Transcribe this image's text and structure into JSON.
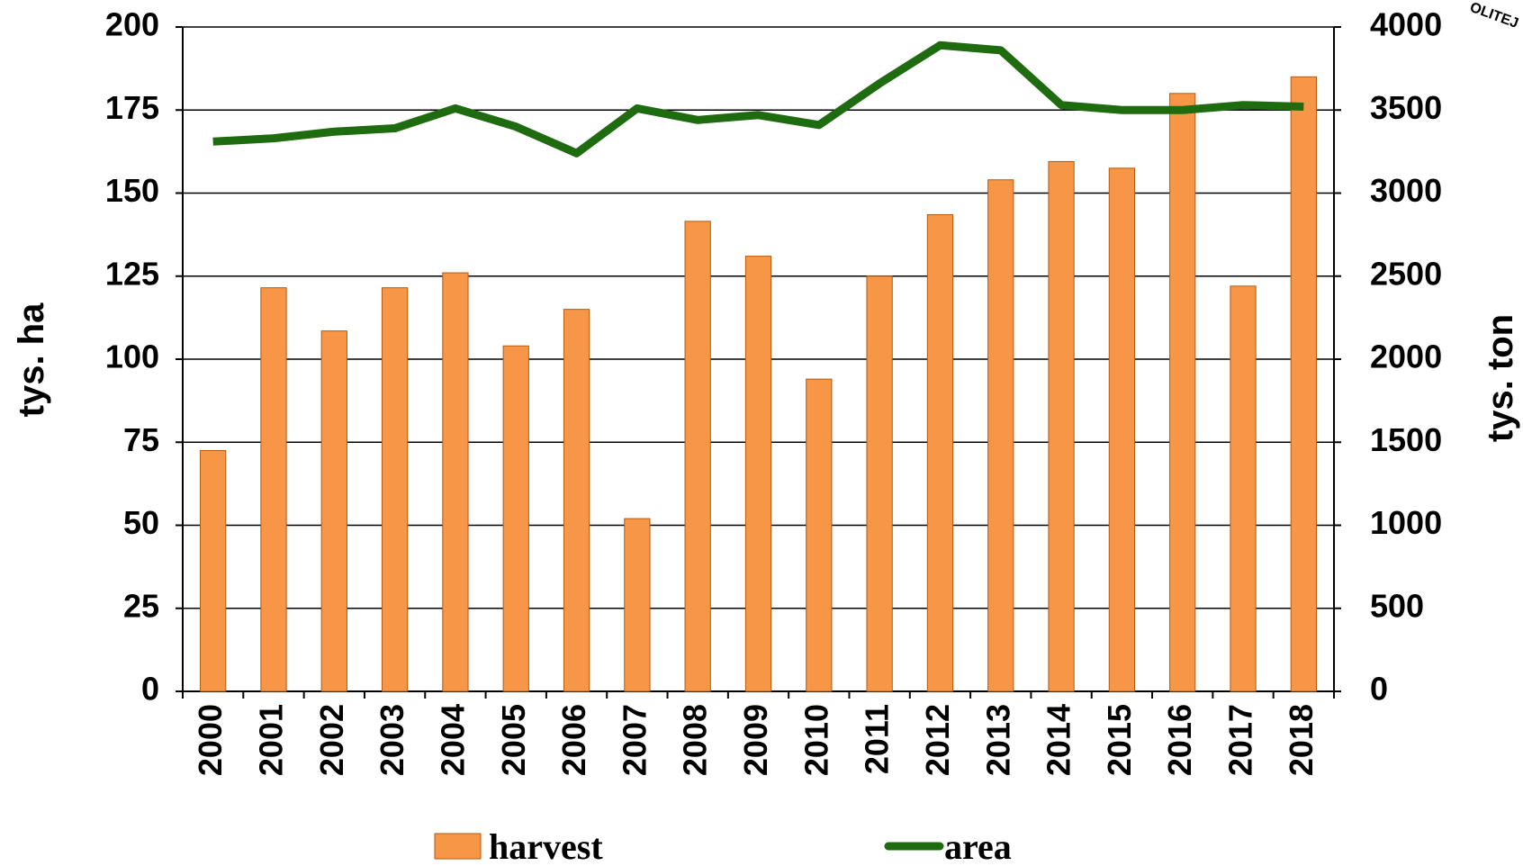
{
  "chart_data": {
    "type": "bar",
    "categories": [
      "2000",
      "2001",
      "2002",
      "2003",
      "2004",
      "2005",
      "2006",
      "2007",
      "2008",
      "2009",
      "2010",
      "2011",
      "2012",
      "2013",
      "2014",
      "2015",
      "2016",
      "2017",
      "2018"
    ],
    "series": [
      {
        "name": "harvest",
        "type": "bar",
        "axis": "y2",
        "color": "#f79646",
        "values": [
          1450,
          2430,
          2170,
          2430,
          2520,
          2080,
          2300,
          1040,
          2830,
          2620,
          1880,
          2500,
          2870,
          3080,
          3190,
          3150,
          3600,
          2440,
          3700
        ]
      },
      {
        "name": "area",
        "type": "line",
        "axis": "y",
        "color": "#1e6b10",
        "values": [
          165.5,
          166.5,
          168.5,
          169.5,
          175.5,
          170,
          162,
          175.5,
          172,
          173.5,
          170.5,
          183,
          194.5,
          193,
          176.5,
          175,
          175,
          176.5,
          176
        ]
      }
    ],
    "ylabel": "tys. ha",
    "y2label": "tys. ton",
    "ylim": [
      0,
      200
    ],
    "yticks": [
      0,
      25,
      50,
      75,
      100,
      125,
      150,
      175,
      200
    ],
    "y2lim": [
      0,
      4000
    ],
    "y2ticks": [
      0,
      500,
      1000,
      1500,
      2000,
      2500,
      3000,
      3500,
      4000
    ],
    "grid": true,
    "legend": "bottom",
    "annotation": "OLITEJ"
  }
}
